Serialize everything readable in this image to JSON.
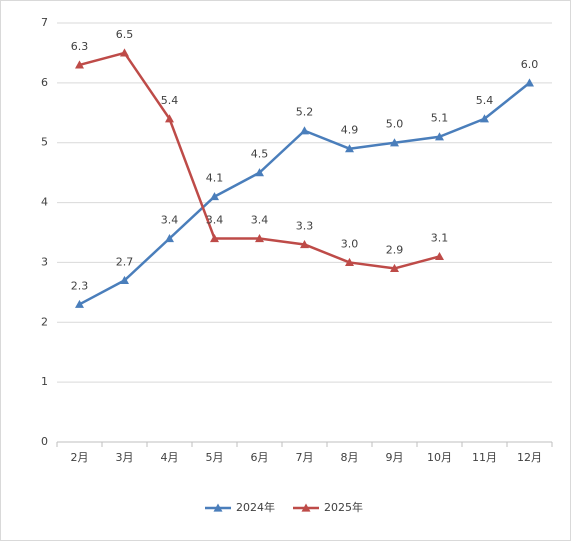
{
  "chart_data": {
    "type": "line",
    "categories": [
      "2月",
      "3月",
      "4月",
      "5月",
      "6月",
      "7月",
      "8月",
      "9月",
      "10月",
      "11月",
      "12月"
    ],
    "series": [
      {
        "name": "2024年",
        "color": "#4a7ebb",
        "values": [
          2.3,
          2.7,
          3.4,
          4.1,
          4.5,
          5.2,
          4.9,
          5.0,
          5.1,
          5.4,
          6.0
        ],
        "value_labels": [
          "2.3",
          "2.7",
          "3.4",
          "4.1",
          "4.5",
          "5.2",
          "4.9",
          "5.0",
          "5.1",
          "5.4",
          "6.0"
        ]
      },
      {
        "name": "2025年",
        "color": "#be4b48",
        "values": [
          6.3,
          6.5,
          5.4,
          3.4,
          3.4,
          3.3,
          3.0,
          2.9,
          3.1,
          null,
          null
        ],
        "value_labels": [
          "6.3",
          "6.5",
          "5.4",
          "3.4",
          "3.4",
          "3.3",
          "3.0",
          "2.9",
          "3.1",
          null,
          null
        ]
      }
    ],
    "ylim": [
      0,
      7
    ],
    "yticks": [
      0,
      1,
      2,
      3,
      4,
      5,
      6,
      7
    ],
    "grid": true,
    "legend": "bottom"
  }
}
